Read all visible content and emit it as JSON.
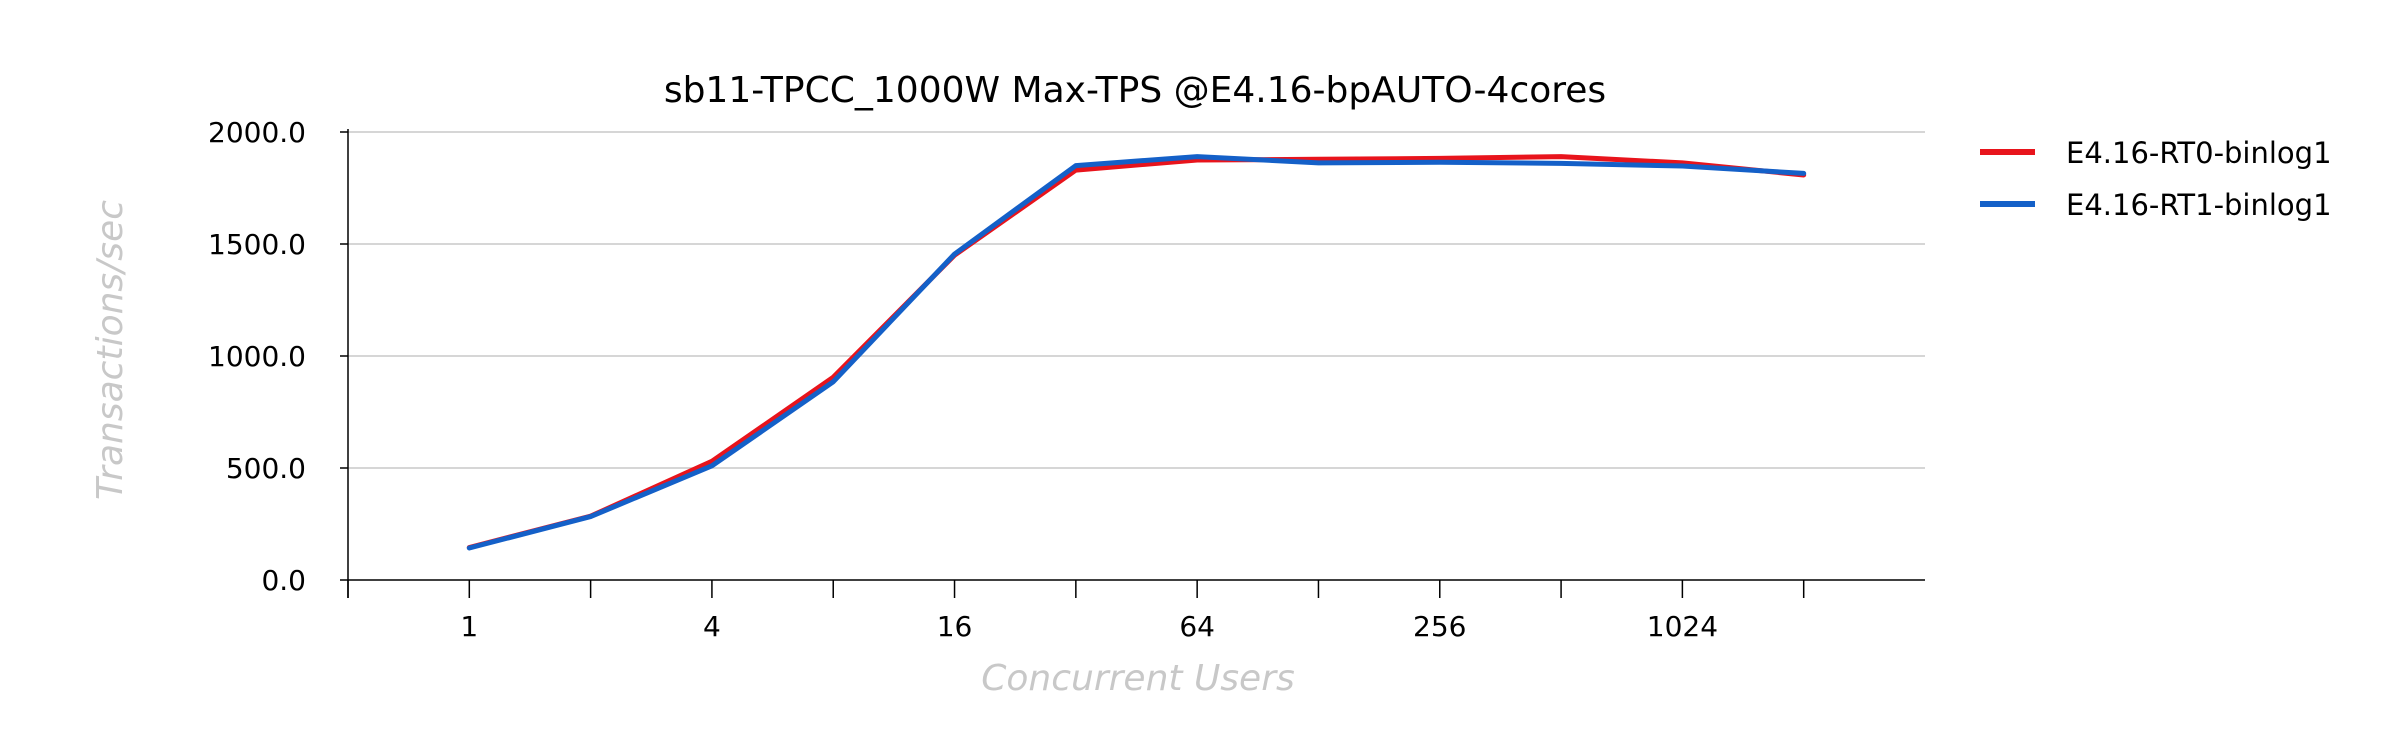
{
  "chart_data": {
    "type": "line",
    "title": "sb11-TPCC_1000W Max-TPS @E4.16-bpAUTO-4cores",
    "xlabel": "Concurrent Users",
    "ylabel": "Transactions/sec",
    "x": [
      1,
      2,
      4,
      8,
      16,
      32,
      64,
      128,
      256,
      512,
      1024,
      2048
    ],
    "x_scale": "log2",
    "xlim": [
      0.5,
      4096
    ],
    "x_tick_labels": [
      "1",
      "4",
      "16",
      "64",
      "256",
      "1024"
    ],
    "x_tick_label_values": [
      1,
      4,
      16,
      64,
      256,
      1024
    ],
    "ylim": [
      0,
      2000
    ],
    "y_ticks": [
      0,
      500,
      1000,
      1500,
      2000
    ],
    "y_tick_labels": [
      "0.0",
      "500.0",
      "1000.0",
      "1500.0",
      "2000.0"
    ],
    "grid": "horizontal",
    "legend_position": "right",
    "series": [
      {
        "name": "E4.16-RT0-binlog1",
        "color": "#e8141c",
        "values": [
          145,
          285,
          530,
          905,
          1450,
          1830,
          1875,
          1878,
          1882,
          1890,
          1862,
          1808
        ]
      },
      {
        "name": "E4.16-RT1-binlog1",
        "color": "#1460c8",
        "values": [
          143,
          283,
          510,
          885,
          1455,
          1850,
          1890,
          1862,
          1865,
          1860,
          1848,
          1815
        ]
      }
    ]
  }
}
